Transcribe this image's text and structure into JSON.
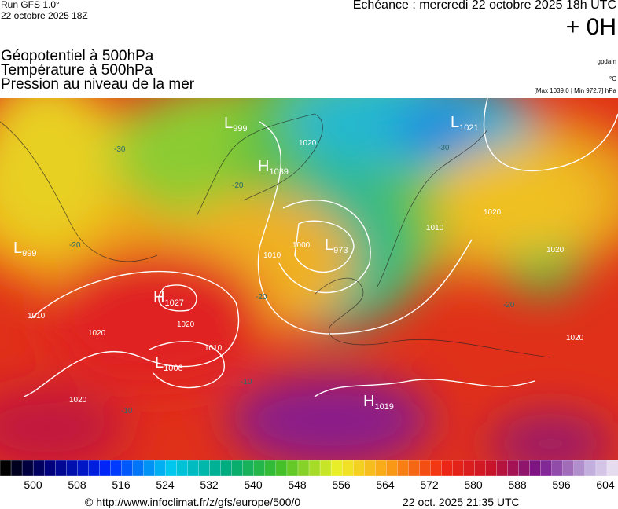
{
  "header": {
    "run": "Run GFS 1.0°",
    "date": "22 octobre 2025 18Z",
    "echeance": "Echéance : mercredi 22 octobre 2025 18h UTC",
    "offset": "+ 0H",
    "fields": [
      "Géopotentiel à 500hPa",
      "Température à 500hPa",
      "Pression au niveau de la mer"
    ],
    "units": [
      "gpdam",
      "°C",
      "[Max 1039.0 | Min 972.7] hPa"
    ]
  },
  "map": {
    "centers": [
      {
        "letter": "L",
        "value": "999"
      },
      {
        "letter": "L",
        "value": "1021"
      },
      {
        "letter": "H",
        "value": "1039"
      },
      {
        "letter": "L",
        "value": "999"
      },
      {
        "letter": "L",
        "value": "973"
      },
      {
        "letter": "H",
        "value": "1027"
      },
      {
        "letter": "L",
        "value": "1006"
      },
      {
        "letter": "H",
        "value": "1019"
      }
    ],
    "isobar_labels": [
      "1020",
      "1000",
      "1010",
      "1010",
      "1020",
      "1020",
      "1010",
      "1020",
      "1020",
      "1020",
      "1010",
      "1020"
    ],
    "temperature_labels": [
      "-20",
      "-20",
      "-30",
      "-20",
      "-10",
      "-10",
      "-30",
      "-20"
    ]
  },
  "colorbar": {
    "labels": [
      "500",
      "508",
      "516",
      "524",
      "532",
      "540",
      "548",
      "556",
      "564",
      "572",
      "580",
      "588",
      "596",
      "604"
    ]
  },
  "footer": {
    "url": "© http://www.infoclimat.fr/z/gfs/europe/500/0",
    "updated": "22 oct. 2025 21:35 UTC"
  }
}
